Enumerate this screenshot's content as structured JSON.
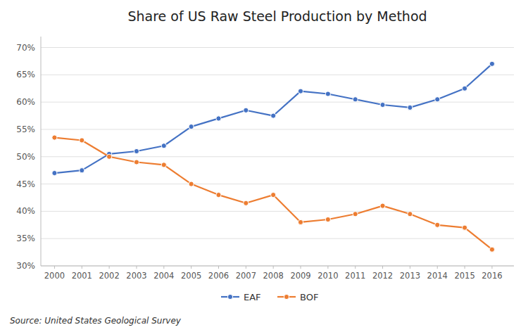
{
  "chart_data": {
    "type": "line",
    "title": "Share of US Raw Steel Production by Method",
    "annotations": [
      "Source: United States Geological Survey"
    ],
    "x": [
      2000,
      2001,
      2002,
      2003,
      2004,
      2005,
      2006,
      2007,
      2008,
      2009,
      2010,
      2011,
      2012,
      2013,
      2014,
      2015,
      2016
    ],
    "xlim": [
      1999.5,
      2016.8
    ],
    "xticks": [
      2000,
      2001,
      2002,
      2003,
      2004,
      2005,
      2006,
      2007,
      2008,
      2009,
      2010,
      2011,
      2012,
      2013,
      2014,
      2015,
      2016
    ],
    "ylim": [
      30,
      72
    ],
    "yticks": [
      {
        "value": 30,
        "label": "30%"
      },
      {
        "value": 35,
        "label": "35%"
      },
      {
        "value": 40,
        "label": "40%"
      },
      {
        "value": 45,
        "label": "45%"
      },
      {
        "value": 50,
        "label": "50%"
      },
      {
        "value": 55,
        "label": "55%"
      },
      {
        "value": 60,
        "label": "60%"
      },
      {
        "value": 65,
        "label": "65%"
      },
      {
        "value": 70,
        "label": "70%"
      }
    ],
    "grid": true,
    "legend": "bottom",
    "marker": "circle",
    "series": [
      {
        "name": "EAF",
        "color": "#4472C4",
        "values": [
          47,
          47.5,
          50.5,
          51,
          52,
          55.5,
          57,
          58.5,
          57.5,
          62,
          61.5,
          60.5,
          59.5,
          59,
          60.5,
          62.5,
          67
        ]
      },
      {
        "name": "BOF",
        "color": "#ED7D31",
        "values": [
          53.5,
          53,
          50,
          49,
          48.5,
          45,
          43,
          41.5,
          43,
          38,
          38.5,
          39.5,
          41,
          39.5,
          37.5,
          37,
          33
        ]
      }
    ]
  }
}
